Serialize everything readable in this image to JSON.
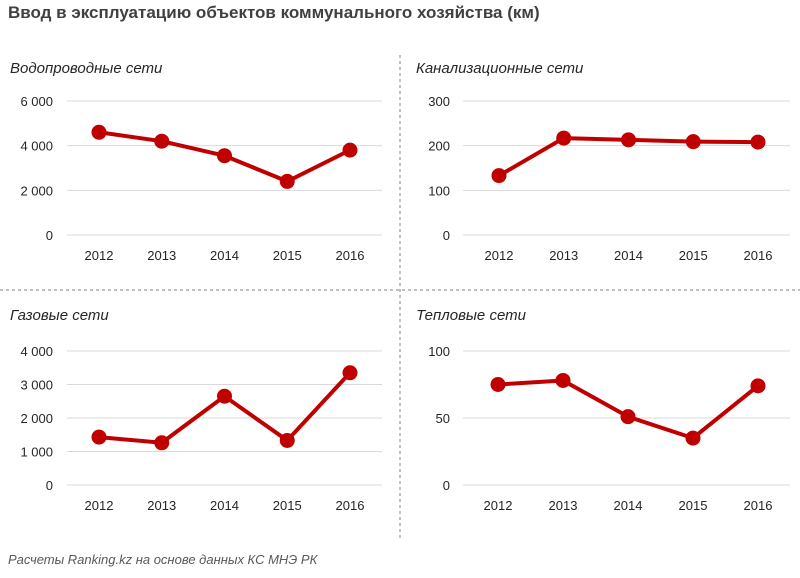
{
  "title": "Ввод в эксплуатацию объектов коммунального хозяйства (км)",
  "footer": "Расчеты Ranking.kz на основе данных КС МНЭ РК",
  "chart_data": [
    {
      "type": "line",
      "title": "Водопроводные сети",
      "categories": [
        "2012",
        "2013",
        "2014",
        "2015",
        "2016"
      ],
      "values": [
        4600,
        4200,
        3550,
        2400,
        3800
      ],
      "ylim": [
        0,
        6000
      ],
      "yticks": [
        0,
        2000,
        4000,
        6000
      ],
      "ytick_labels": [
        "0",
        "2 000",
        "4 000",
        "6 000"
      ],
      "grid": true,
      "color": "#c00000"
    },
    {
      "type": "line",
      "title": "Канализационные сети",
      "categories": [
        "2012",
        "2013",
        "2014",
        "2015",
        "2016"
      ],
      "values": [
        133,
        217,
        213,
        209,
        208
      ],
      "ylim": [
        0,
        300
      ],
      "yticks": [
        0,
        100,
        200,
        300
      ],
      "ytick_labels": [
        "0",
        "100",
        "200",
        "300"
      ],
      "grid": true,
      "color": "#c00000"
    },
    {
      "type": "line",
      "title": "Газовые сети",
      "categories": [
        "2012",
        "2013",
        "2014",
        "2015",
        "2016"
      ],
      "values": [
        1430,
        1260,
        2650,
        1330,
        3350
      ],
      "ylim": [
        0,
        4000
      ],
      "yticks": [
        0,
        1000,
        2000,
        3000,
        4000
      ],
      "ytick_labels": [
        "0",
        "1 000",
        "2 000",
        "3 000",
        "4 000"
      ],
      "grid": true,
      "color": "#c00000"
    },
    {
      "type": "line",
      "title": "Тепловые сети",
      "categories": [
        "2012",
        "2013",
        "2014",
        "2015",
        "2016"
      ],
      "values": [
        75,
        78,
        51,
        35,
        74
      ],
      "ylim": [
        0,
        100
      ],
      "yticks": [
        0,
        50,
        100
      ],
      "ytick_labels": [
        "0",
        "50",
        "100"
      ],
      "grid": true,
      "color": "#c00000"
    }
  ]
}
